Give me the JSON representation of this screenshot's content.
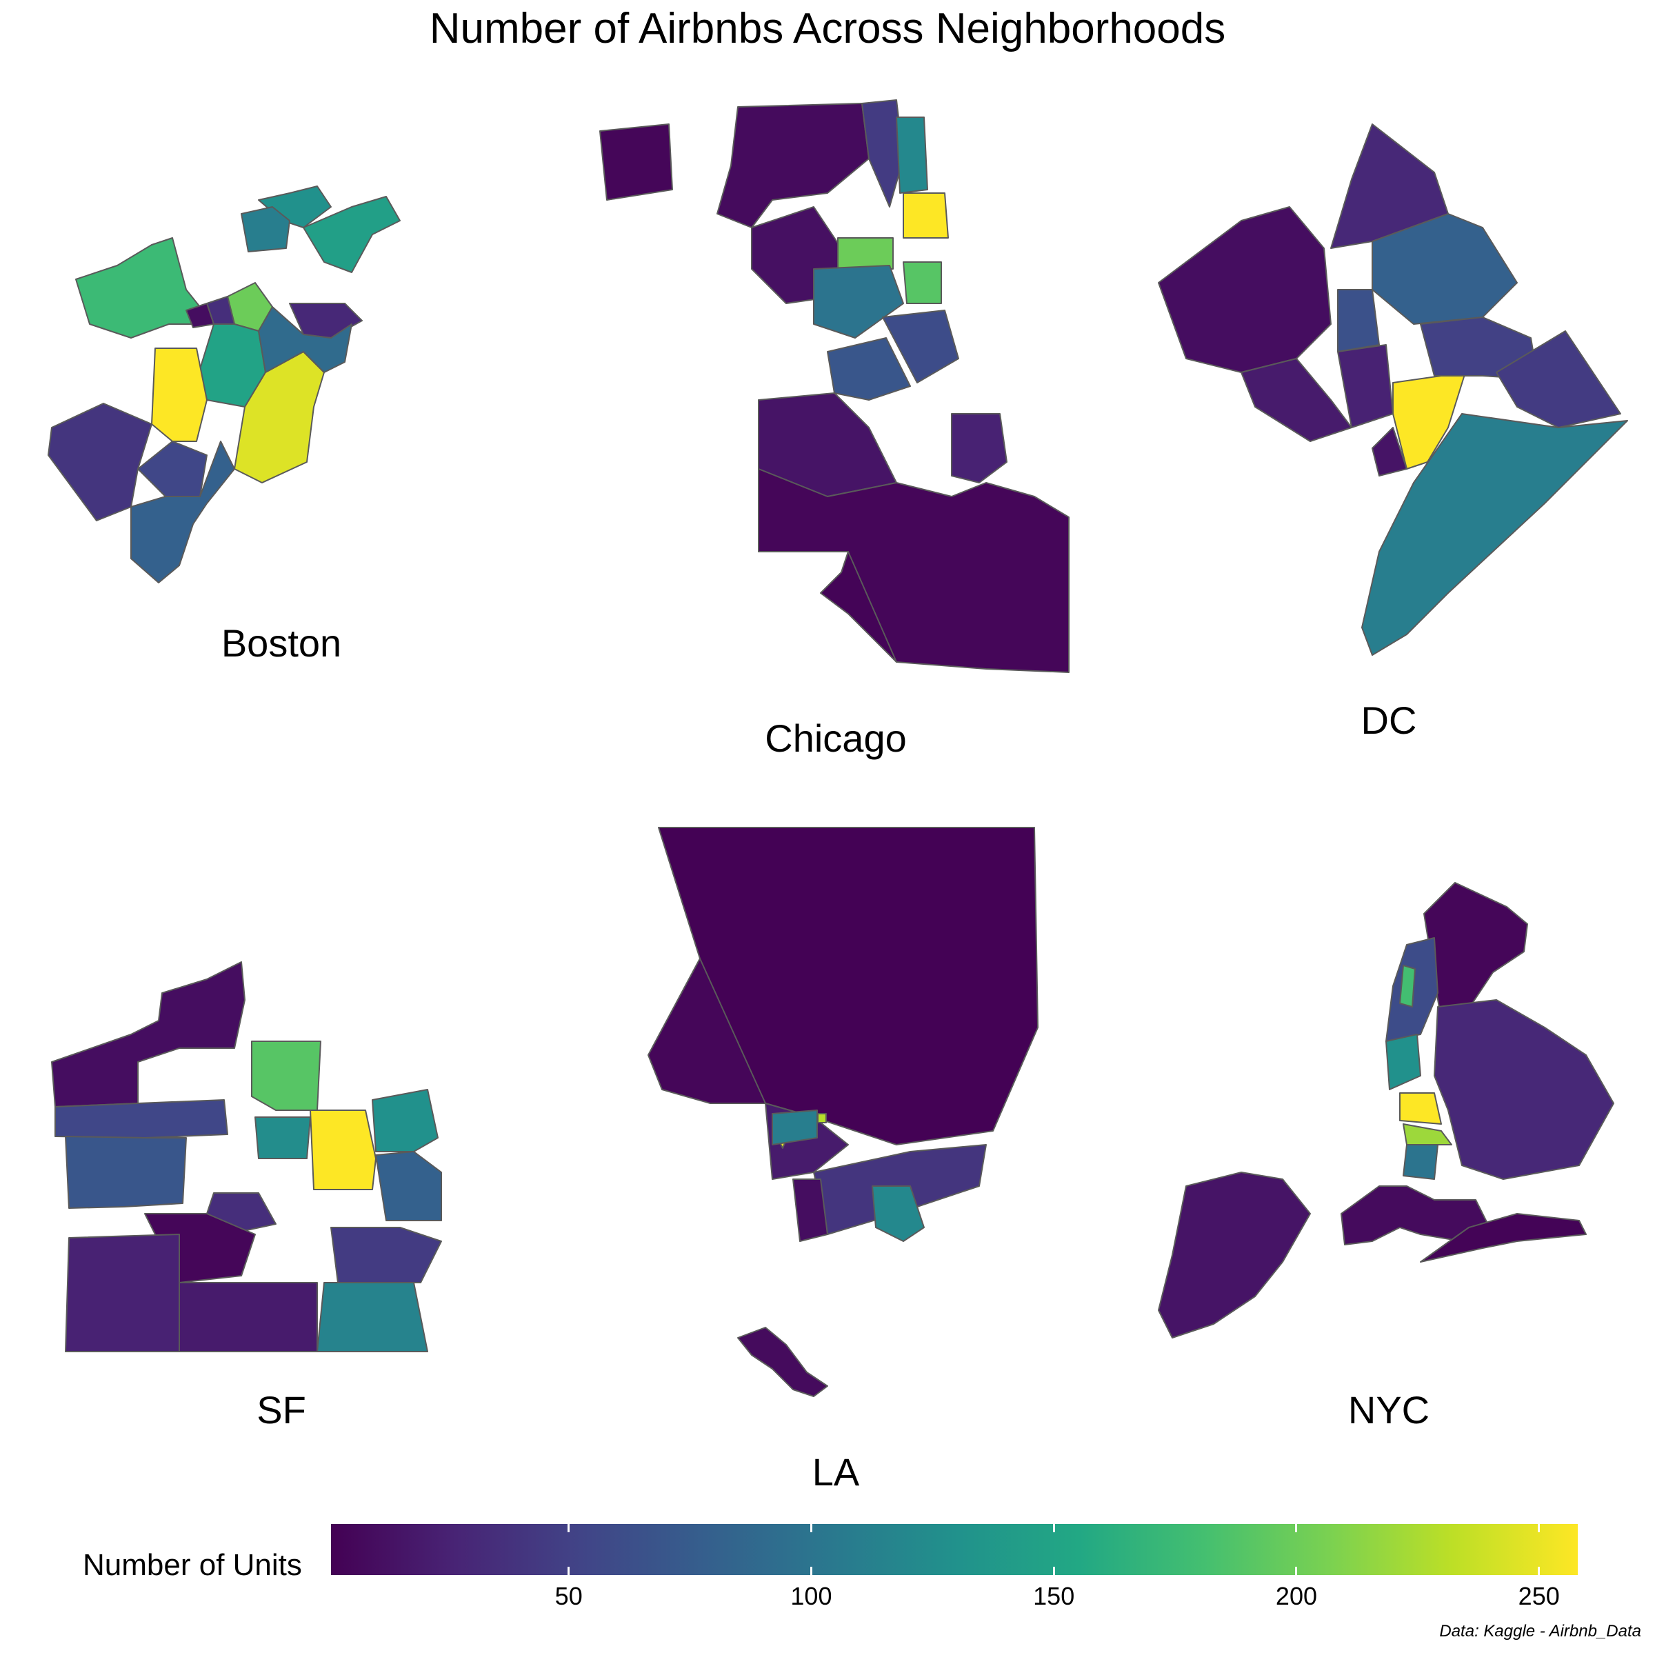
{
  "title": "Number of Airbnbs Across Neighborhoods",
  "cities": [
    {
      "key": "boston",
      "name": "Boston"
    },
    {
      "key": "chicago",
      "name": "Chicago"
    },
    {
      "key": "dc",
      "name": "DC"
    },
    {
      "key": "sf",
      "name": "SF"
    },
    {
      "key": "la",
      "name": "LA"
    },
    {
      "key": "nyc",
      "name": "NYC"
    }
  ],
  "legend": {
    "title": "Number of Units",
    "min": 1,
    "max": 258,
    "ticks": [
      50,
      100,
      150,
      200,
      250
    ],
    "tick_labels": [
      "50",
      "100",
      "150",
      "200",
      "250"
    ],
    "colors": [
      "#440154",
      "#482475",
      "#414487",
      "#355f8d",
      "#2a788e",
      "#21918c",
      "#22a884",
      "#44bf70",
      "#7ad151",
      "#bddf26",
      "#fde725"
    ]
  },
  "source": "Data: Kaggle - Airbnb_Data",
  "chart_data": {
    "type": "choropleth",
    "panels": [
      {
        "name": "Boston",
        "regions": [
          {
            "value": 130
          },
          {
            "value": 175
          },
          {
            "value": 200
          },
          {
            "value": 150
          },
          {
            "value": 258
          },
          {
            "value": 245
          },
          {
            "value": 40
          },
          {
            "value": 55
          },
          {
            "value": 80
          },
          {
            "value": 35
          },
          {
            "value": 30
          },
          {
            "value": 110
          },
          {
            "value": 145
          },
          {
            "value": 90
          },
          {
            "value": 10
          }
        ]
      },
      {
        "name": "Chicago",
        "regions": [
          {
            "value": 5
          },
          {
            "value": 8
          },
          {
            "value": 12
          },
          {
            "value": 45
          },
          {
            "value": 258
          },
          {
            "value": 200
          },
          {
            "value": 190
          },
          {
            "value": 120
          },
          {
            "value": 100
          },
          {
            "value": 70
          },
          {
            "value": 60
          },
          {
            "value": 15
          },
          {
            "value": 5
          },
          {
            "value": 3
          },
          {
            "value": 25
          }
        ]
      },
      {
        "name": "DC",
        "regions": [
          {
            "value": 10
          },
          {
            "value": 20
          },
          {
            "value": 30
          },
          {
            "value": 80
          },
          {
            "value": 65
          },
          {
            "value": 258
          },
          {
            "value": 25
          },
          {
            "value": 50
          },
          {
            "value": 15
          },
          {
            "value": 45
          },
          {
            "value": 110
          }
        ]
      },
      {
        "name": "SF",
        "regions": [
          {
            "value": 10
          },
          {
            "value": 55
          },
          {
            "value": 70
          },
          {
            "value": 190
          },
          {
            "value": 125
          },
          {
            "value": 258
          },
          {
            "value": 130
          },
          {
            "value": 80
          },
          {
            "value": 35
          },
          {
            "value": 5
          },
          {
            "value": 45
          },
          {
            "value": 25
          },
          {
            "value": 115
          },
          {
            "value": 20
          }
        ]
      },
      {
        "name": "LA",
        "regions": [
          {
            "value": 2
          },
          {
            "value": 5
          },
          {
            "value": 20
          },
          {
            "value": 40
          },
          {
            "value": 230
          },
          {
            "value": 250
          },
          {
            "value": 110
          },
          {
            "value": 120
          },
          {
            "value": 10
          },
          {
            "value": 8
          }
        ]
      },
      {
        "name": "NYC",
        "regions": [
          {
            "value": 5
          },
          {
            "value": 60
          },
          {
            "value": 180
          },
          {
            "value": 130
          },
          {
            "value": 258
          },
          {
            "value": 220
          },
          {
            "value": 100
          },
          {
            "value": 30
          },
          {
            "value": 8
          },
          {
            "value": 15
          },
          {
            "value": 3
          }
        ]
      }
    ]
  }
}
